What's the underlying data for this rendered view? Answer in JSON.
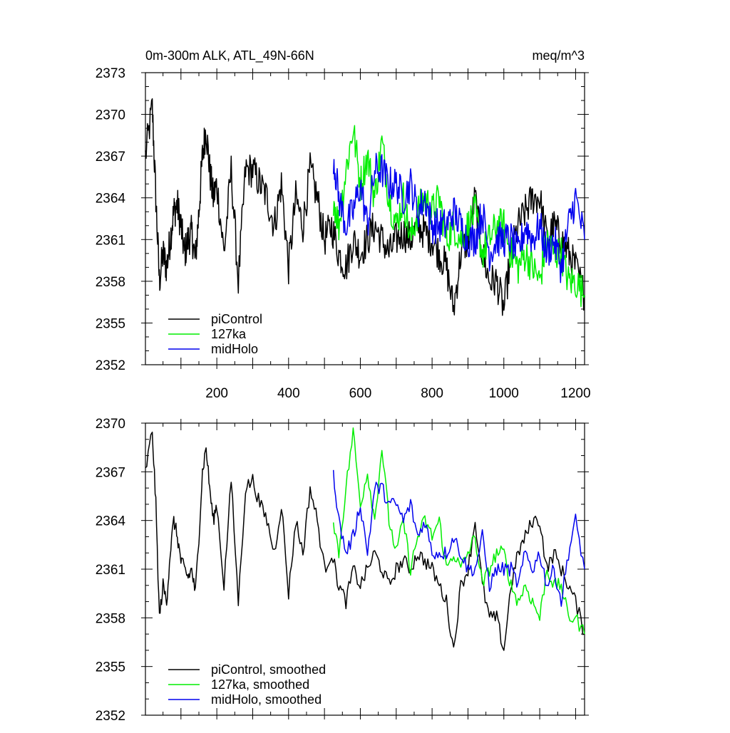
{
  "title_left": "0m-300m ALK, ATL_49N-66N",
  "title_right": "meq/m^3",
  "colors": {
    "piControl": "#000000",
    "127ka": "#00ee00",
    "midHolo": "#0000ee"
  },
  "chart_data": [
    {
      "type": "line",
      "title": "0m-300m ALK, ATL_49N-66N",
      "units": "meq/m^3",
      "xlim": [
        1,
        1225
      ],
      "ylim": [
        2352,
        2373
      ],
      "xticks": [
        200,
        400,
        600,
        800,
        1000,
        1200
      ],
      "yticks": [
        2352,
        2355,
        2358,
        2361,
        2364,
        2367,
        2370,
        2373
      ],
      "legend_position": "bottom-left",
      "series": [
        {
          "name": "piControl",
          "key": "piControl",
          "x": [
            1,
            20,
            30,
            40,
            50,
            60,
            70,
            80,
            90,
            100,
            110,
            120,
            130,
            140,
            150,
            160,
            170,
            180,
            190,
            200,
            220,
            240,
            260,
            280,
            300,
            320,
            340,
            360,
            380,
            400,
            420,
            440,
            460,
            480,
            500,
            520,
            540,
            560,
            580,
            600,
            620,
            640,
            660,
            680,
            700,
            720,
            740,
            760,
            780,
            800,
            820,
            840,
            860,
            880,
            900,
            920,
            940,
            960,
            980,
            1000,
            1020,
            1040,
            1060,
            1080,
            1100,
            1120,
            1140,
            1160,
            1180,
            1200,
            1225
          ],
          "y": [
            2367,
            2370.5,
            2364,
            2358,
            2360,
            2359,
            2361,
            2363,
            2363.5,
            2362,
            2360,
            2361,
            2361.5,
            2359.5,
            2363,
            2367,
            2369,
            2366,
            2364,
            2365,
            2360,
            2366,
            2358,
            2366,
            2366,
            2365,
            2364,
            2362,
            2365,
            2359,
            2364,
            2362,
            2366,
            2364,
            2361,
            2362,
            2360,
            2359,
            2361,
            2360,
            2361,
            2362,
            2361,
            2360,
            2361,
            2361.5,
            2361,
            2362,
            2361.5,
            2361,
            2360,
            2359,
            2356,
            2360,
            2361,
            2364,
            2360,
            2358,
            2358,
            2356,
            2360,
            2362,
            2363,
            2364,
            2364,
            2361,
            2362,
            2361,
            2360,
            2359,
            2357
          ]
        },
        {
          "name": "127ka",
          "key": "127ka",
          "x": [
            525,
            540,
            560,
            580,
            600,
            620,
            640,
            660,
            680,
            700,
            720,
            740,
            760,
            780,
            800,
            820,
            840,
            860,
            880,
            900,
            920,
            940,
            960,
            980,
            1000,
            1020,
            1040,
            1060,
            1080,
            1100,
            1120,
            1140,
            1160,
            1180,
            1200,
            1225
          ],
          "y": [
            2364,
            2362,
            2366,
            2369,
            2365,
            2367,
            2364,
            2368,
            2364,
            2362,
            2364,
            2361,
            2363,
            2364,
            2363,
            2364,
            2361,
            2362,
            2361,
            2362,
            2363,
            2360,
            2361,
            2362,
            2362,
            2360,
            2359,
            2360,
            2359,
            2358,
            2361,
            2360,
            2360,
            2358,
            2358,
            2357
          ]
        },
        {
          "name": "midHolo",
          "key": "midHolo",
          "x": [
            525,
            540,
            560,
            580,
            600,
            620,
            640,
            660,
            680,
            700,
            720,
            740,
            760,
            780,
            800,
            820,
            840,
            860,
            880,
            900,
            920,
            940,
            960,
            980,
            1000,
            1020,
            1040,
            1060,
            1080,
            1100,
            1120,
            1140,
            1160,
            1180,
            1200,
            1225
          ],
          "y": [
            2367,
            2364,
            2362,
            2363,
            2365,
            2362,
            2366,
            2366,
            2365,
            2365,
            2364,
            2365,
            2363,
            2364,
            2362,
            2362,
            2362,
            2363,
            2362,
            2361,
            2361,
            2363,
            2360,
            2361,
            2361,
            2361,
            2360,
            2362,
            2361,
            2362,
            2360,
            2361,
            2359,
            2362,
            2364,
            2361
          ]
        }
      ]
    },
    {
      "type": "line",
      "xlim": [
        1,
        1225
      ],
      "ylim": [
        2352,
        2370
      ],
      "yticks": [
        2352,
        2355,
        2358,
        2361,
        2364,
        2367,
        2370
      ],
      "legend_position": "bottom-left",
      "series": [
        {
          "name": "piControl, smoothed",
          "key": "piControl",
          "x": [
            1,
            20,
            30,
            40,
            50,
            60,
            70,
            80,
            90,
            100,
            110,
            120,
            130,
            140,
            150,
            160,
            170,
            180,
            190,
            200,
            220,
            240,
            260,
            280,
            300,
            320,
            340,
            360,
            380,
            400,
            420,
            440,
            460,
            480,
            500,
            520,
            540,
            560,
            580,
            600,
            620,
            640,
            660,
            680,
            700,
            720,
            740,
            760,
            780,
            800,
            820,
            840,
            860,
            880,
            900,
            920,
            940,
            960,
            980,
            1000,
            1020,
            1040,
            1060,
            1080,
            1100,
            1120,
            1140,
            1160,
            1180,
            1200,
            1225
          ],
          "y": [
            2367,
            2369.5,
            2365,
            2358,
            2360,
            2359,
            2362,
            2364,
            2363,
            2361.5,
            2361,
            2360.5,
            2361,
            2359.5,
            2363,
            2367,
            2368.5,
            2366,
            2364,
            2365,
            2360,
            2366.5,
            2359,
            2366,
            2366.5,
            2365,
            2364,
            2362,
            2365,
            2359.5,
            2364,
            2362,
            2366,
            2364,
            2361,
            2362,
            2360,
            2359,
            2361,
            2360,
            2361,
            2362,
            2361,
            2360,
            2361,
            2361.5,
            2361,
            2362,
            2361.5,
            2361,
            2360,
            2359,
            2356,
            2360,
            2361,
            2364,
            2360,
            2358,
            2358,
            2356,
            2360,
            2362,
            2363,
            2364,
            2364,
            2361,
            2362,
            2361,
            2360,
            2359,
            2357
          ]
        },
        {
          "name": "127ka, smoothed",
          "key": "127ka",
          "x": [
            525,
            540,
            560,
            580,
            600,
            620,
            640,
            660,
            680,
            700,
            720,
            740,
            760,
            780,
            800,
            820,
            840,
            860,
            880,
            900,
            920,
            940,
            960,
            980,
            1000,
            1020,
            1040,
            1060,
            1080,
            1100,
            1120,
            1140,
            1160,
            1180,
            1200,
            1225
          ],
          "y": [
            2364,
            2362,
            2366,
            2369.5,
            2365,
            2367,
            2364,
            2368.5,
            2364,
            2362,
            2364,
            2361,
            2363,
            2364,
            2363,
            2364,
            2361,
            2362,
            2361,
            2362,
            2363,
            2360,
            2361,
            2362,
            2362,
            2360,
            2359,
            2360,
            2359,
            2358,
            2361,
            2360,
            2360,
            2358,
            2358,
            2357
          ]
        },
        {
          "name": "midHolo, smoothed",
          "key": "midHolo",
          "x": [
            525,
            540,
            560,
            580,
            600,
            620,
            640,
            660,
            680,
            700,
            720,
            740,
            760,
            780,
            800,
            820,
            840,
            860,
            880,
            900,
            920,
            940,
            960,
            980,
            1000,
            1020,
            1040,
            1060,
            1080,
            1100,
            1120,
            1140,
            1160,
            1180,
            1200,
            1225
          ],
          "y": [
            2367,
            2364,
            2362,
            2363,
            2365,
            2362,
            2366,
            2366,
            2365,
            2365,
            2364,
            2365,
            2363,
            2364,
            2362,
            2362,
            2362,
            2363,
            2362,
            2361,
            2361,
            2363,
            2360,
            2361,
            2361,
            2361,
            2360,
            2362,
            2361,
            2362,
            2360,
            2361,
            2359,
            2362,
            2364,
            2361
          ]
        }
      ]
    }
  ]
}
